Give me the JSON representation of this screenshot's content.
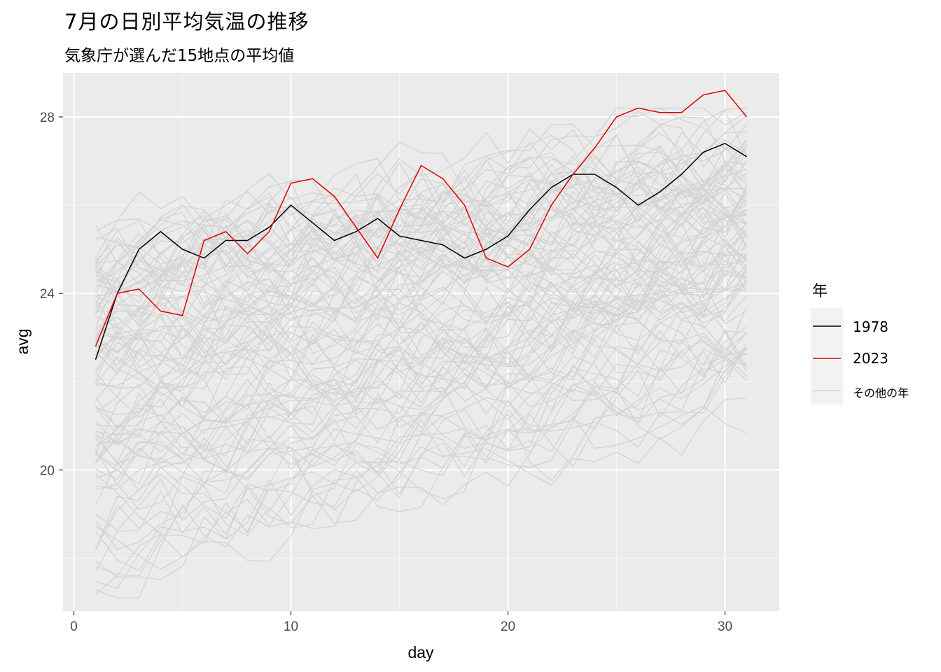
{
  "chart_data": {
    "type": "line",
    "title": "7月の日別平均気温の推移",
    "subtitle": "気象庁が選んだ15地点の平均値",
    "xlabel": "day",
    "ylabel": "avg",
    "xlim": [
      1,
      31
    ],
    "ylim": [
      16.8,
      29
    ],
    "x_ticks": [
      0,
      10,
      20,
      30
    ],
    "y_ticks": [
      20,
      24,
      28
    ],
    "grid": true,
    "legend": {
      "title": "年",
      "position": "right",
      "entries": [
        {
          "label": "1978",
          "color": "#000000"
        },
        {
          "label": "2023",
          "color": "#e00000"
        },
        {
          "label": "その他の年",
          "color": "#d3d3d3"
        }
      ]
    },
    "x": [
      1,
      2,
      3,
      4,
      5,
      6,
      7,
      8,
      9,
      10,
      11,
      12,
      13,
      14,
      15,
      16,
      17,
      18,
      19,
      20,
      21,
      22,
      23,
      24,
      25,
      26,
      27,
      28,
      29,
      30,
      31
    ],
    "series": [
      {
        "name": "1978",
        "color": "#000000",
        "values": [
          22.5,
          24.0,
          25.0,
          25.4,
          25.0,
          24.8,
          25.2,
          25.2,
          25.5,
          26.0,
          25.6,
          25.2,
          25.4,
          25.7,
          25.3,
          25.2,
          25.1,
          24.8,
          25.0,
          25.3,
          25.9,
          26.4,
          26.7,
          26.7,
          26.4,
          26.0,
          26.3,
          26.7,
          27.2,
          27.4,
          27.1
        ]
      },
      {
        "name": "2023",
        "color": "#e00000",
        "values": [
          22.8,
          24.0,
          24.1,
          23.6,
          23.5,
          25.2,
          25.4,
          24.9,
          25.4,
          26.5,
          26.6,
          26.2,
          25.5,
          24.8,
          25.9,
          26.9,
          26.6,
          26.0,
          24.8,
          24.6,
          25.0,
          26.0,
          26.7,
          27.3,
          28.0,
          28.2,
          28.1,
          28.1,
          28.5,
          28.6,
          28.0
        ]
      }
    ],
    "other_years": {
      "label": "その他の年",
      "color": "#d3d3d3",
      "count": 100,
      "value_range": [
        17.1,
        28.2
      ],
      "trend_start": [
        17.7,
        25.4
      ],
      "trend_end": [
        21.3,
        28.2
      ]
    }
  }
}
